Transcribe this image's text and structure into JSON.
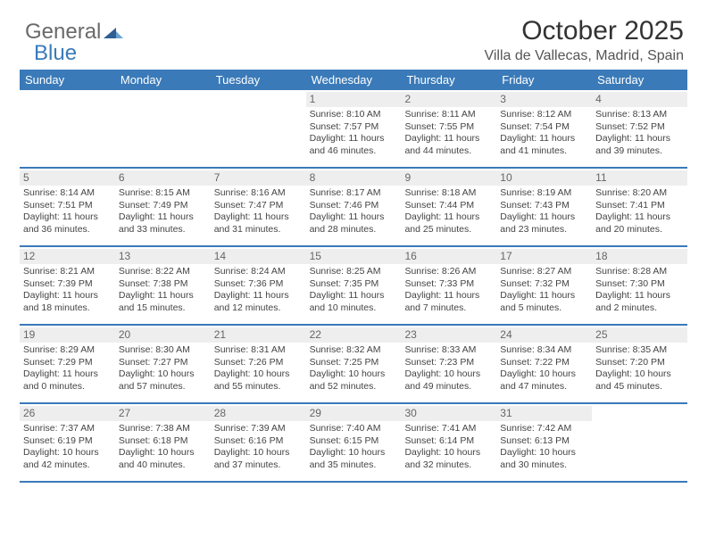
{
  "logo": {
    "general": "General",
    "blue": "Blue"
  },
  "title": "October 2025",
  "subtitle": "Villa de Vallecas, Madrid, Spain",
  "colors": {
    "accent": "#3a7ab8",
    "header_text": "#ffffff",
    "daynum_bg": "#eeeeee",
    "daynum_fg": "#666666",
    "body_text": "#444444",
    "page_bg": "#ffffff"
  },
  "fontsizes": {
    "title": 30,
    "subtitle": 16,
    "header": 13,
    "daynum": 12,
    "body": 10.5
  },
  "weekday_headers": [
    "Sunday",
    "Monday",
    "Tuesday",
    "Wednesday",
    "Thursday",
    "Friday",
    "Saturday"
  ],
  "weeks": [
    [
      {
        "n": "",
        "sr": "",
        "ss": "",
        "dl1": "",
        "dl2": ""
      },
      {
        "n": "",
        "sr": "",
        "ss": "",
        "dl1": "",
        "dl2": ""
      },
      {
        "n": "",
        "sr": "",
        "ss": "",
        "dl1": "",
        "dl2": ""
      },
      {
        "n": "1",
        "sr": "Sunrise: 8:10 AM",
        "ss": "Sunset: 7:57 PM",
        "dl1": "Daylight: 11 hours",
        "dl2": "and 46 minutes."
      },
      {
        "n": "2",
        "sr": "Sunrise: 8:11 AM",
        "ss": "Sunset: 7:55 PM",
        "dl1": "Daylight: 11 hours",
        "dl2": "and 44 minutes."
      },
      {
        "n": "3",
        "sr": "Sunrise: 8:12 AM",
        "ss": "Sunset: 7:54 PM",
        "dl1": "Daylight: 11 hours",
        "dl2": "and 41 minutes."
      },
      {
        "n": "4",
        "sr": "Sunrise: 8:13 AM",
        "ss": "Sunset: 7:52 PM",
        "dl1": "Daylight: 11 hours",
        "dl2": "and 39 minutes."
      }
    ],
    [
      {
        "n": "5",
        "sr": "Sunrise: 8:14 AM",
        "ss": "Sunset: 7:51 PM",
        "dl1": "Daylight: 11 hours",
        "dl2": "and 36 minutes."
      },
      {
        "n": "6",
        "sr": "Sunrise: 8:15 AM",
        "ss": "Sunset: 7:49 PM",
        "dl1": "Daylight: 11 hours",
        "dl2": "and 33 minutes."
      },
      {
        "n": "7",
        "sr": "Sunrise: 8:16 AM",
        "ss": "Sunset: 7:47 PM",
        "dl1": "Daylight: 11 hours",
        "dl2": "and 31 minutes."
      },
      {
        "n": "8",
        "sr": "Sunrise: 8:17 AM",
        "ss": "Sunset: 7:46 PM",
        "dl1": "Daylight: 11 hours",
        "dl2": "and 28 minutes."
      },
      {
        "n": "9",
        "sr": "Sunrise: 8:18 AM",
        "ss": "Sunset: 7:44 PM",
        "dl1": "Daylight: 11 hours",
        "dl2": "and 25 minutes."
      },
      {
        "n": "10",
        "sr": "Sunrise: 8:19 AM",
        "ss": "Sunset: 7:43 PM",
        "dl1": "Daylight: 11 hours",
        "dl2": "and 23 minutes."
      },
      {
        "n": "11",
        "sr": "Sunrise: 8:20 AM",
        "ss": "Sunset: 7:41 PM",
        "dl1": "Daylight: 11 hours",
        "dl2": "and 20 minutes."
      }
    ],
    [
      {
        "n": "12",
        "sr": "Sunrise: 8:21 AM",
        "ss": "Sunset: 7:39 PM",
        "dl1": "Daylight: 11 hours",
        "dl2": "and 18 minutes."
      },
      {
        "n": "13",
        "sr": "Sunrise: 8:22 AM",
        "ss": "Sunset: 7:38 PM",
        "dl1": "Daylight: 11 hours",
        "dl2": "and 15 minutes."
      },
      {
        "n": "14",
        "sr": "Sunrise: 8:24 AM",
        "ss": "Sunset: 7:36 PM",
        "dl1": "Daylight: 11 hours",
        "dl2": "and 12 minutes."
      },
      {
        "n": "15",
        "sr": "Sunrise: 8:25 AM",
        "ss": "Sunset: 7:35 PM",
        "dl1": "Daylight: 11 hours",
        "dl2": "and 10 minutes."
      },
      {
        "n": "16",
        "sr": "Sunrise: 8:26 AM",
        "ss": "Sunset: 7:33 PM",
        "dl1": "Daylight: 11 hours",
        "dl2": "and 7 minutes."
      },
      {
        "n": "17",
        "sr": "Sunrise: 8:27 AM",
        "ss": "Sunset: 7:32 PM",
        "dl1": "Daylight: 11 hours",
        "dl2": "and 5 minutes."
      },
      {
        "n": "18",
        "sr": "Sunrise: 8:28 AM",
        "ss": "Sunset: 7:30 PM",
        "dl1": "Daylight: 11 hours",
        "dl2": "and 2 minutes."
      }
    ],
    [
      {
        "n": "19",
        "sr": "Sunrise: 8:29 AM",
        "ss": "Sunset: 7:29 PM",
        "dl1": "Daylight: 11 hours",
        "dl2": "and 0 minutes."
      },
      {
        "n": "20",
        "sr": "Sunrise: 8:30 AM",
        "ss": "Sunset: 7:27 PM",
        "dl1": "Daylight: 10 hours",
        "dl2": "and 57 minutes."
      },
      {
        "n": "21",
        "sr": "Sunrise: 8:31 AM",
        "ss": "Sunset: 7:26 PM",
        "dl1": "Daylight: 10 hours",
        "dl2": "and 55 minutes."
      },
      {
        "n": "22",
        "sr": "Sunrise: 8:32 AM",
        "ss": "Sunset: 7:25 PM",
        "dl1": "Daylight: 10 hours",
        "dl2": "and 52 minutes."
      },
      {
        "n": "23",
        "sr": "Sunrise: 8:33 AM",
        "ss": "Sunset: 7:23 PM",
        "dl1": "Daylight: 10 hours",
        "dl2": "and 49 minutes."
      },
      {
        "n": "24",
        "sr": "Sunrise: 8:34 AM",
        "ss": "Sunset: 7:22 PM",
        "dl1": "Daylight: 10 hours",
        "dl2": "and 47 minutes."
      },
      {
        "n": "25",
        "sr": "Sunrise: 8:35 AM",
        "ss": "Sunset: 7:20 PM",
        "dl1": "Daylight: 10 hours",
        "dl2": "and 45 minutes."
      }
    ],
    [
      {
        "n": "26",
        "sr": "Sunrise: 7:37 AM",
        "ss": "Sunset: 6:19 PM",
        "dl1": "Daylight: 10 hours",
        "dl2": "and 42 minutes."
      },
      {
        "n": "27",
        "sr": "Sunrise: 7:38 AM",
        "ss": "Sunset: 6:18 PM",
        "dl1": "Daylight: 10 hours",
        "dl2": "and 40 minutes."
      },
      {
        "n": "28",
        "sr": "Sunrise: 7:39 AM",
        "ss": "Sunset: 6:16 PM",
        "dl1": "Daylight: 10 hours",
        "dl2": "and 37 minutes."
      },
      {
        "n": "29",
        "sr": "Sunrise: 7:40 AM",
        "ss": "Sunset: 6:15 PM",
        "dl1": "Daylight: 10 hours",
        "dl2": "and 35 minutes."
      },
      {
        "n": "30",
        "sr": "Sunrise: 7:41 AM",
        "ss": "Sunset: 6:14 PM",
        "dl1": "Daylight: 10 hours",
        "dl2": "and 32 minutes."
      },
      {
        "n": "31",
        "sr": "Sunrise: 7:42 AM",
        "ss": "Sunset: 6:13 PM",
        "dl1": "Daylight: 10 hours",
        "dl2": "and 30 minutes."
      },
      {
        "n": "",
        "sr": "",
        "ss": "",
        "dl1": "",
        "dl2": ""
      }
    ]
  ]
}
